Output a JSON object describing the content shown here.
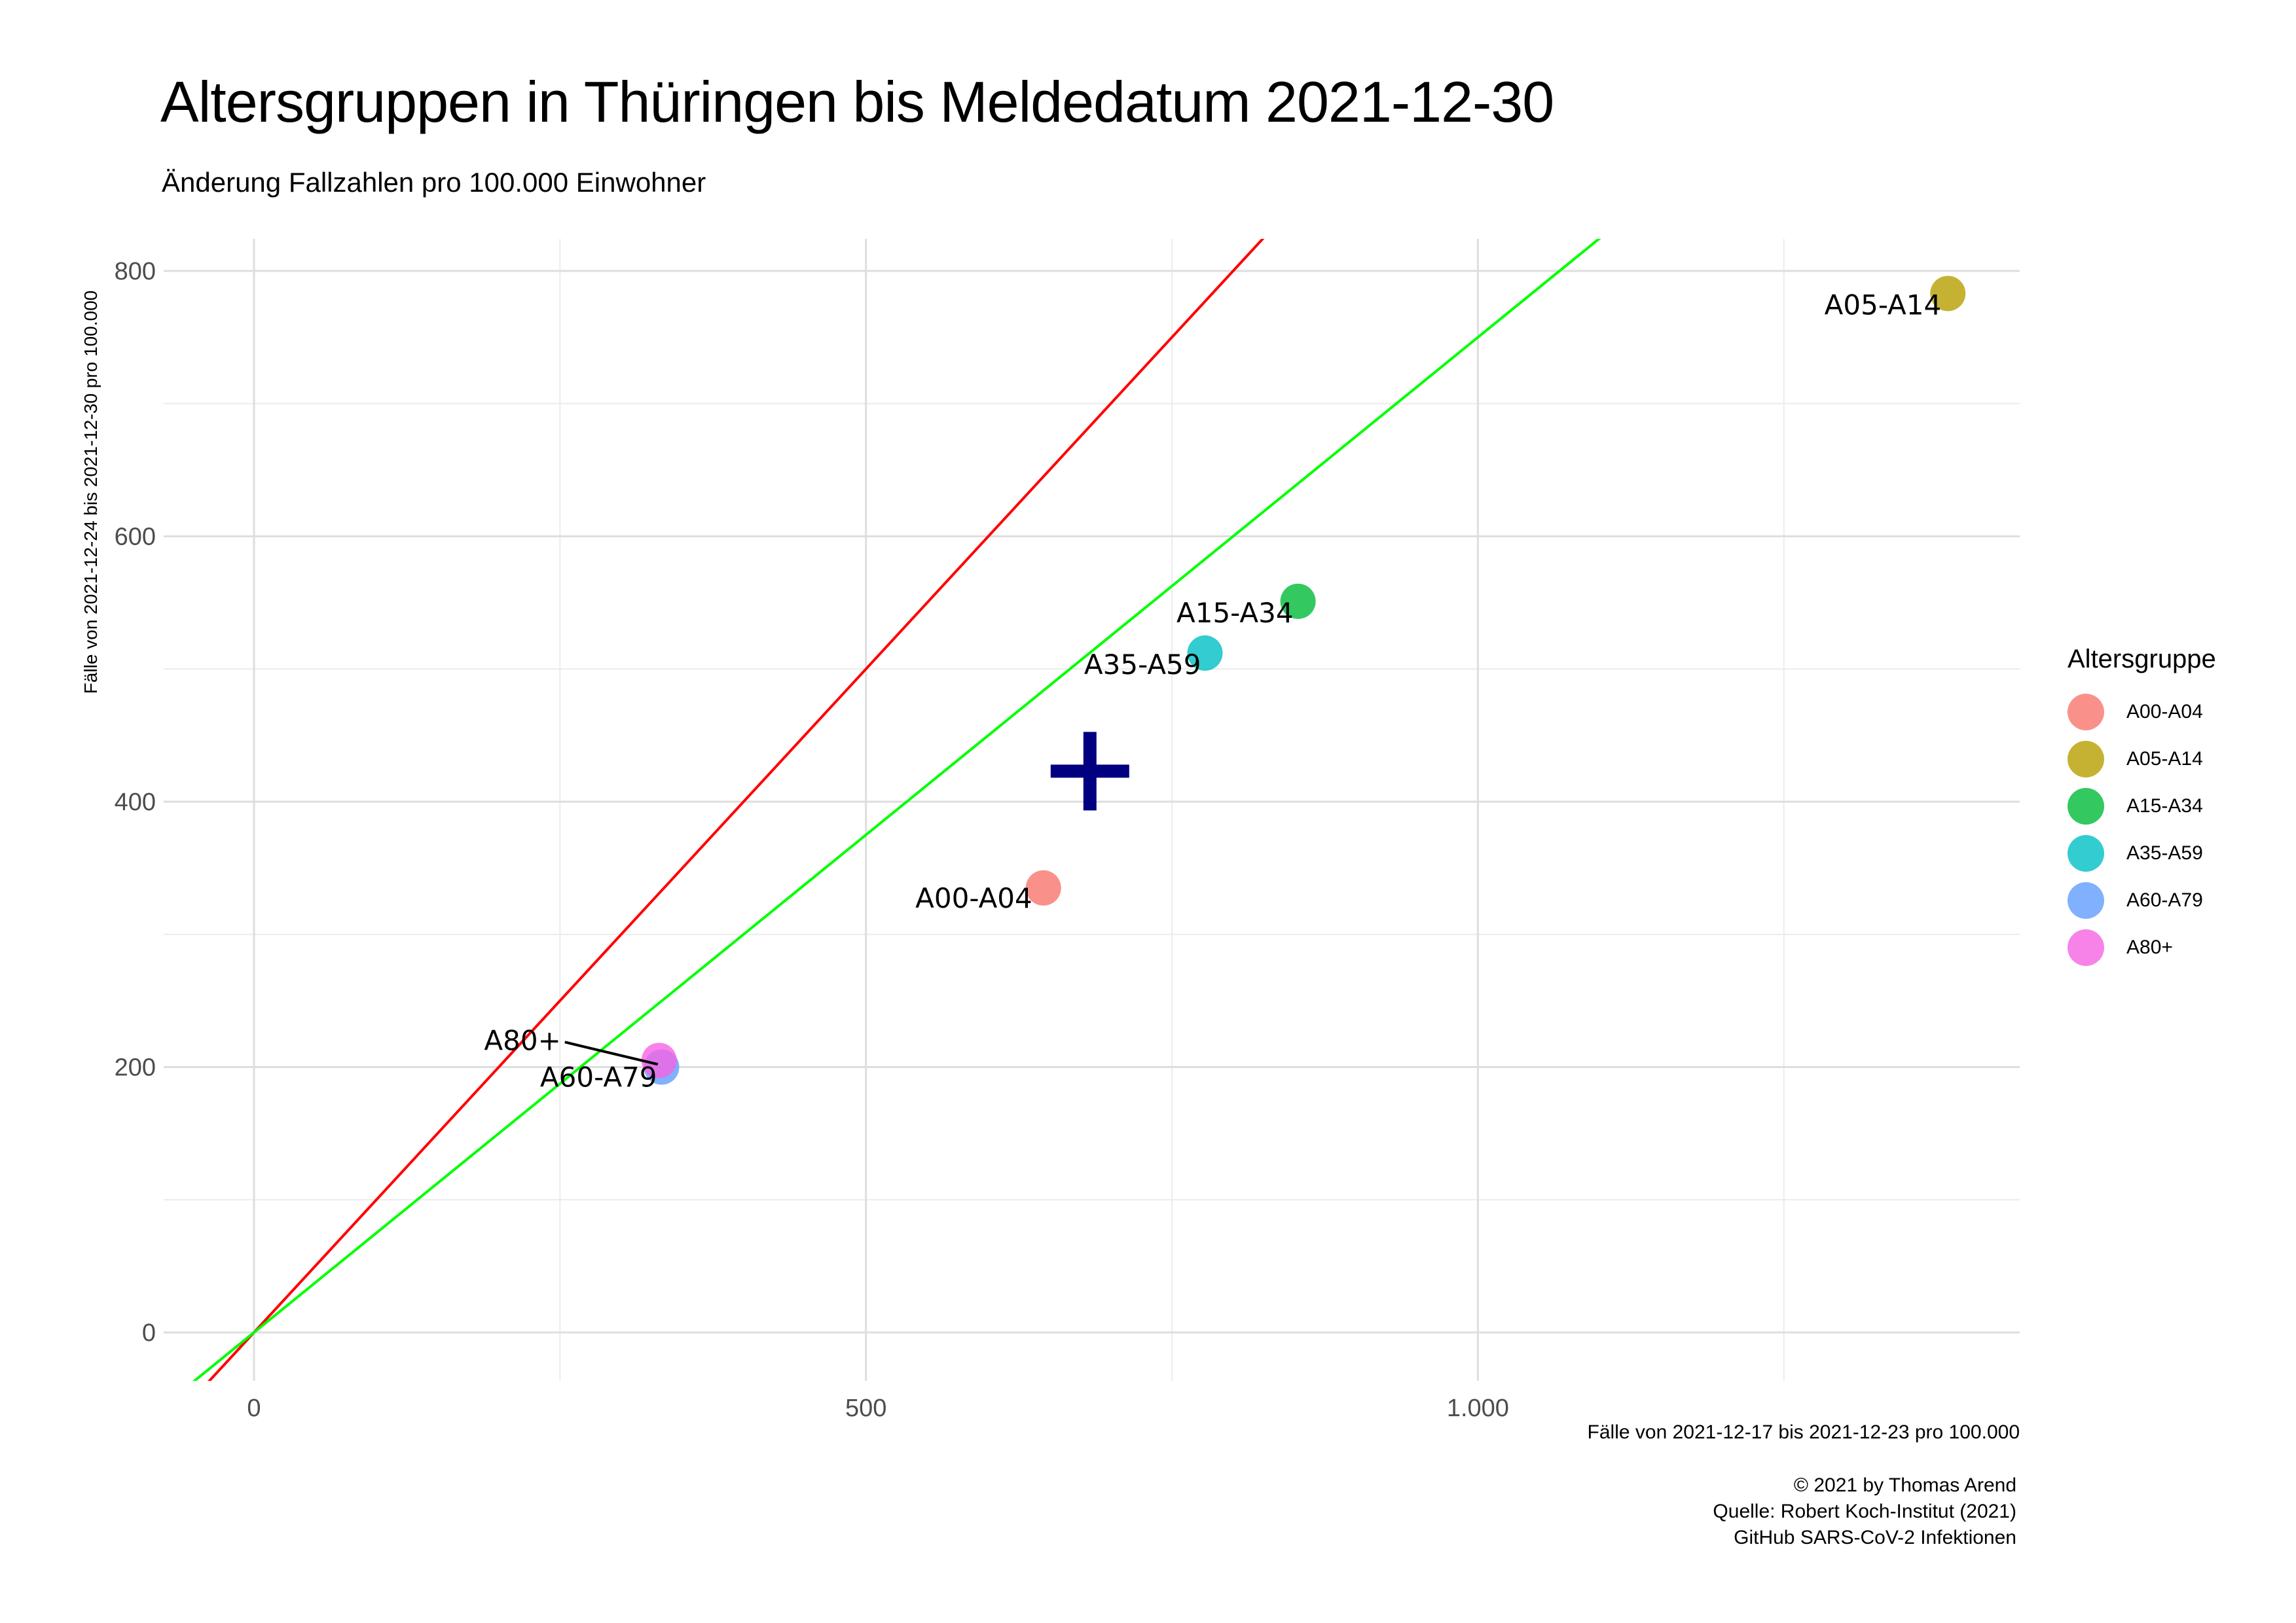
{
  "title": "Altersgruppen in Thüringen bis Meldedatum 2021-12-30",
  "subtitle": "Änderung Fallzahlen pro 100.000 Einwohner",
  "caption": [
    "© 2021 by Thomas Arend",
    "Quelle: Robert Koch-Institut (2021)",
    "GitHub SARS-CoV-2 Infektionen"
  ],
  "chart_data": {
    "type": "scatter",
    "xlabel": "Fälle von 2021-12-17 bis 2021-12-23 pro 100.000",
    "ylabel": "Fälle von 2021-12-24 bis 2021-12-30 pro 100.000",
    "xlim": [
      -65,
      1450
    ],
    "ylim": [
      -40,
      825
    ],
    "x_ticks": [
      0,
      500,
      1000
    ],
    "x_tick_labels": [
      "0",
      "500",
      "1.000"
    ],
    "y_ticks": [
      0,
      200,
      400,
      600,
      800
    ],
    "y_tick_labels": [
      "0",
      "200",
      "400",
      "600",
      "800"
    ],
    "grid": true,
    "legend_title": "Altersgruppe",
    "legend_position": "right",
    "series": [
      {
        "name": "A00-A04",
        "x": 645,
        "y": 335,
        "color": "#F8766D"
      },
      {
        "name": "A05-A14",
        "x": 1384,
        "y": 783,
        "color": "#B79F00"
      },
      {
        "name": "A15-A34",
        "x": 853,
        "y": 551,
        "color": "#00BA38"
      },
      {
        "name": "A35-A59",
        "x": 777,
        "y": 512,
        "color": "#00BFC4"
      },
      {
        "name": "A60-A79",
        "x": 333,
        "y": 200,
        "color": "#619CFF"
      },
      {
        "name": "A80+",
        "x": 331,
        "y": 205,
        "color": "#F564E3"
      }
    ],
    "reference_lines": [
      {
        "slope": 1,
        "intercept": 0,
        "color": "#FF0000"
      },
      {
        "slope": 0.75,
        "intercept": 0,
        "color": "#00FF00"
      }
    ],
    "center_marker": {
      "x": 683,
      "y": 423,
      "color": "#000080"
    }
  }
}
